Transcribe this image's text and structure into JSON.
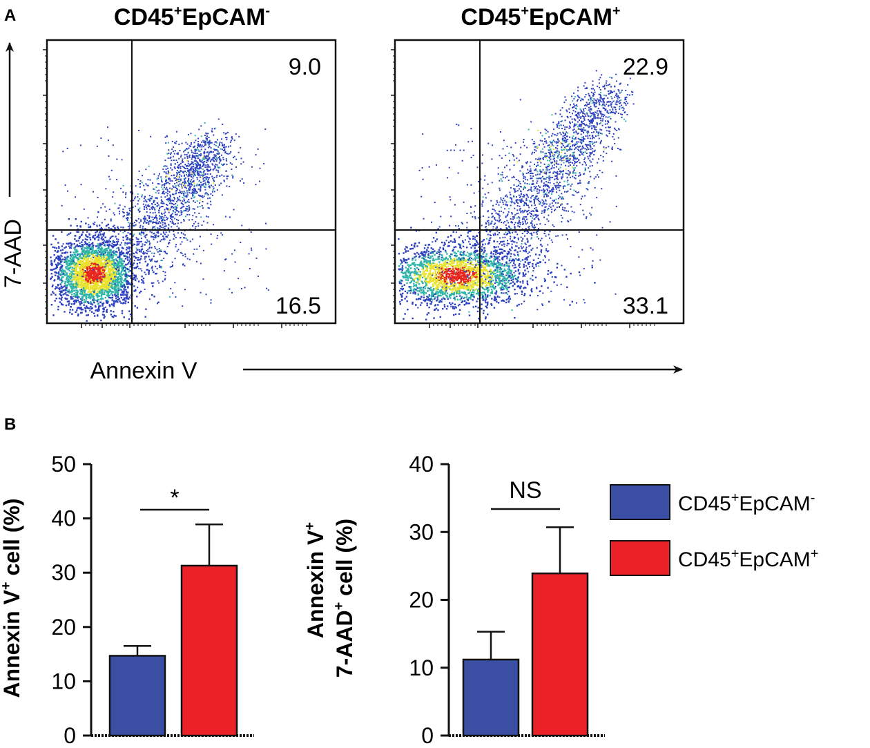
{
  "panel_a_letter": "A",
  "panel_b_letter": "B",
  "flow_plots": [
    {
      "title_base": "CD45",
      "title_sup1": "+",
      "title_mid": "EpCAM",
      "title_sup2": "-",
      "quadrant_upper_right": "9.0",
      "quadrant_lower_right": "16.5"
    },
    {
      "title_base": "CD45",
      "title_sup1": "+",
      "title_mid": "EpCAM",
      "title_sup2": "+",
      "quadrant_upper_right": "22.9",
      "quadrant_lower_right": "33.1"
    }
  ],
  "flow_y_axis_label": "7-AAD",
  "flow_x_axis_label": "Annexin V",
  "colors": {
    "blue_bar": "#3a4fa3",
    "red_bar": "#ea2228",
    "density_low": "#2b3fbf",
    "density_mid": "#2fb5a8",
    "density_high": "#e8e22e",
    "density_peak": "#e8261d"
  },
  "chart_data": [
    {
      "type": "bar",
      "title": "",
      "categories": [
        "CD45+EpCAM-",
        "CD45+EpCAM+"
      ],
      "series": [
        {
          "name": "mean",
          "values": [
            14.7,
            31.3
          ]
        },
        {
          "name": "error_upper",
          "values": [
            16.5,
            38.9
          ]
        }
      ],
      "ylabel_line1": "Annexin V",
      "ylabel_line1_sup": "+",
      "ylabel_line1_tail": " cell (%)",
      "ylim": [
        0,
        50
      ],
      "yticks": [
        "0",
        "10",
        "20",
        "30",
        "40",
        "50"
      ],
      "significance": "*",
      "bar_colors": [
        "#3a4fa3",
        "#ea2228"
      ]
    },
    {
      "type": "bar",
      "title": "",
      "categories": [
        "CD45+EpCAM-",
        "CD45+EpCAM+"
      ],
      "series": [
        {
          "name": "mean",
          "values": [
            11.2,
            23.9
          ]
        },
        {
          "name": "error_upper",
          "values": [
            15.3,
            30.7
          ]
        }
      ],
      "ylabel_line1": "Annexin V",
      "ylabel_line1_sup": "+",
      "ylabel_line2": "7-AAD",
      "ylabel_line2_sup": "+",
      "ylabel_line2_tail": " cell (%)",
      "ylim": [
        0,
        40
      ],
      "yticks": [
        "0",
        "10",
        "20",
        "30",
        "40"
      ],
      "significance": "NS",
      "bar_colors": [
        "#3a4fa3",
        "#ea2228"
      ]
    }
  ],
  "legend": [
    {
      "base": "CD45",
      "sup1": "+",
      "mid": "EpCAM",
      "sup2": "-",
      "color": "#3a4fa3"
    },
    {
      "base": "CD45",
      "sup1": "+",
      "mid": "EpCAM",
      "sup2": "+",
      "color": "#ea2228"
    }
  ]
}
